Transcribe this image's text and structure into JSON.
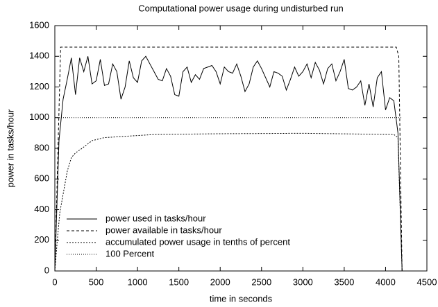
{
  "chart_data": {
    "type": "line",
    "title": "Computational power usage during undisturbed run",
    "xlabel": "time in seconds",
    "ylabel": "power in tasks/hour",
    "xlim": [
      0,
      4500
    ],
    "xticks": [
      0,
      500,
      1000,
      1500,
      2000,
      2500,
      3000,
      3500,
      4000,
      4500
    ],
    "ylim": [
      0,
      1600
    ],
    "yticks": [
      0,
      200,
      400,
      600,
      800,
      1000,
      1200,
      1400,
      1600
    ],
    "legend": "bottom-left",
    "series": [
      {
        "name": "power used in tasks/hour",
        "color": "#000000",
        "dash": "none",
        "x": [
          0,
          50,
          100,
          150,
          200,
          250,
          300,
          350,
          400,
          450,
          500,
          550,
          600,
          650,
          700,
          750,
          800,
          850,
          900,
          950,
          1000,
          1050,
          1100,
          1150,
          1200,
          1250,
          1300,
          1350,
          1400,
          1450,
          1500,
          1550,
          1600,
          1650,
          1700,
          1750,
          1800,
          1850,
          1900,
          1950,
          2000,
          2050,
          2100,
          2150,
          2200,
          2250,
          2300,
          2350,
          2400,
          2450,
          2500,
          2550,
          2600,
          2650,
          2700,
          2750,
          2800,
          2850,
          2900,
          2950,
          3000,
          3050,
          3100,
          3150,
          3200,
          3250,
          3300,
          3350,
          3400,
          3450,
          3500,
          3550,
          3600,
          3650,
          3700,
          3750,
          3800,
          3850,
          3900,
          3950,
          4000,
          4050,
          4100,
          4150,
          4200
        ],
        "values": [
          0,
          850,
          1120,
          1250,
          1390,
          1150,
          1390,
          1300,
          1400,
          1220,
          1240,
          1380,
          1210,
          1220,
          1350,
          1300,
          1120,
          1200,
          1370,
          1260,
          1230,
          1370,
          1400,
          1350,
          1300,
          1250,
          1240,
          1320,
          1270,
          1150,
          1140,
          1300,
          1330,
          1230,
          1280,
          1250,
          1320,
          1330,
          1340,
          1300,
          1220,
          1330,
          1300,
          1290,
          1350,
          1270,
          1170,
          1220,
          1330,
          1370,
          1320,
          1260,
          1200,
          1300,
          1290,
          1270,
          1180,
          1250,
          1330,
          1270,
          1300,
          1350,
          1260,
          1360,
          1310,
          1220,
          1320,
          1350,
          1240,
          1300,
          1380,
          1190,
          1180,
          1200,
          1240,
          1080,
          1220,
          1070,
          1260,
          1300,
          1050,
          1130,
          1110,
          900,
          0
        ]
      },
      {
        "name": "power available in tasks/hour",
        "color": "#000000",
        "dash": "4,3",
        "x": [
          0,
          70,
          4130,
          4160,
          4200
        ],
        "values": [
          0,
          1460,
          1460,
          1400,
          0
        ]
      },
      {
        "name": "accumulated power usage in tenths of percent",
        "color": "#000000",
        "dash": "2,2",
        "x": [
          0,
          30,
          60,
          100,
          150,
          200,
          250,
          330,
          450,
          600,
          900,
          1200,
          2000,
          3000,
          4100,
          4150,
          4200
        ],
        "values": [
          0,
          200,
          380,
          500,
          650,
          740,
          770,
          800,
          850,
          870,
          880,
          890,
          895,
          898,
          890,
          870,
          0
        ]
      },
      {
        "name": "100 Percent",
        "color": "#000000",
        "dash": "1,2",
        "x": [
          0,
          4200
        ],
        "values": [
          1000,
          1000
        ]
      }
    ]
  }
}
